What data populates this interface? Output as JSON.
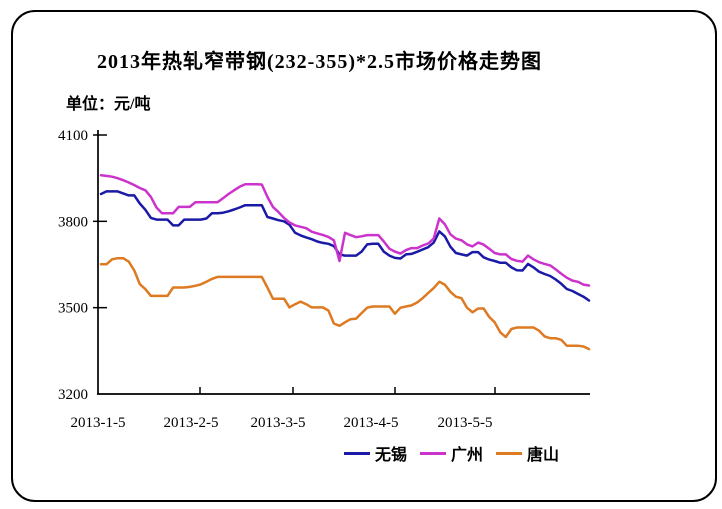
{
  "title": "2013年热轧窄带钢(232-355)*2.5市场价格走势图",
  "unit_label": "单位：元/吨",
  "frame": {
    "border_color": "#000000",
    "background": "#ffffff"
  },
  "chart_data": {
    "type": "line",
    "title": "2013年热轧窄带钢(232-355)*2.5市场价格走势图",
    "ylabel": "元/吨",
    "ylim": [
      3200,
      4100
    ],
    "y_ticks": [
      4100,
      3800,
      3500,
      3200
    ],
    "x_labels": [
      "2013-1-5",
      "2013-2-5",
      "2013-3-5",
      "2013-4-5",
      "2013-5-5"
    ],
    "grid": false,
    "legend_position": "bottom",
    "series": [
      {
        "id": "wuxi",
        "name": "无锡",
        "color": "#1A1AA6",
        "values": [
          3895,
          3904,
          3904,
          3904,
          3897,
          3890,
          3890,
          3862,
          3840,
          3812,
          3806,
          3806,
          3806,
          3786,
          3786,
          3806,
          3806,
          3806,
          3806,
          3810,
          3828,
          3828,
          3830,
          3835,
          3841,
          3848,
          3856,
          3856,
          3856,
          3856,
          3815,
          3810,
          3804,
          3800,
          3788,
          3760,
          3751,
          3744,
          3738,
          3730,
          3725,
          3722,
          3714,
          3685,
          3681,
          3681,
          3681,
          3695,
          3720,
          3722,
          3722,
          3695,
          3681,
          3673,
          3671,
          3685,
          3687,
          3694,
          3702,
          3710,
          3726,
          3765,
          3748,
          3712,
          3690,
          3685,
          3681,
          3693,
          3693,
          3675,
          3667,
          3662,
          3656,
          3656,
          3640,
          3630,
          3629,
          3652,
          3640,
          3625,
          3617,
          3610,
          3598,
          3583,
          3565,
          3558,
          3548,
          3538,
          3525
        ]
      },
      {
        "id": "guangzhou",
        "name": "广州",
        "color": "#CC33CC",
        "values": [
          3960,
          3958,
          3955,
          3950,
          3943,
          3935,
          3926,
          3916,
          3908,
          3885,
          3848,
          3828,
          3828,
          3828,
          3850,
          3850,
          3850,
          3866,
          3866,
          3866,
          3866,
          3866,
          3880,
          3895,
          3908,
          3920,
          3929,
          3929,
          3929,
          3928,
          3885,
          3850,
          3832,
          3812,
          3796,
          3786,
          3781,
          3776,
          3764,
          3758,
          3753,
          3746,
          3734,
          3662,
          3760,
          3752,
          3745,
          3748,
          3752,
          3752,
          3752,
          3730,
          3705,
          3695,
          3688,
          3700,
          3707,
          3707,
          3716,
          3723,
          3740,
          3810,
          3790,
          3755,
          3740,
          3734,
          3720,
          3713,
          3726,
          3719,
          3705,
          3690,
          3685,
          3685,
          3669,
          3663,
          3660,
          3681,
          3668,
          3658,
          3652,
          3647,
          3633,
          3618,
          3604,
          3594,
          3590,
          3580,
          3577
        ]
      },
      {
        "id": "tangshan",
        "name": "唐山",
        "color": "#DD7A22",
        "values": [
          3651,
          3651,
          3668,
          3672,
          3672,
          3660,
          3629,
          3582,
          3564,
          3541,
          3541,
          3541,
          3541,
          3570,
          3570,
          3570,
          3572,
          3576,
          3581,
          3590,
          3600,
          3607,
          3607,
          3607,
          3607,
          3607,
          3607,
          3607,
          3607,
          3607,
          3570,
          3531,
          3531,
          3531,
          3501,
          3512,
          3521,
          3512,
          3501,
          3501,
          3501,
          3490,
          3445,
          3437,
          3449,
          3460,
          3462,
          3481,
          3500,
          3504,
          3504,
          3504,
          3504,
          3479,
          3500,
          3504,
          3508,
          3518,
          3533,
          3551,
          3568,
          3590,
          3580,
          3555,
          3538,
          3533,
          3500,
          3484,
          3497,
          3497,
          3468,
          3449,
          3414,
          3398,
          3426,
          3431,
          3431,
          3431,
          3431,
          3420,
          3400,
          3394,
          3394,
          3388,
          3368,
          3368,
          3368,
          3365,
          3356
        ]
      }
    ]
  }
}
